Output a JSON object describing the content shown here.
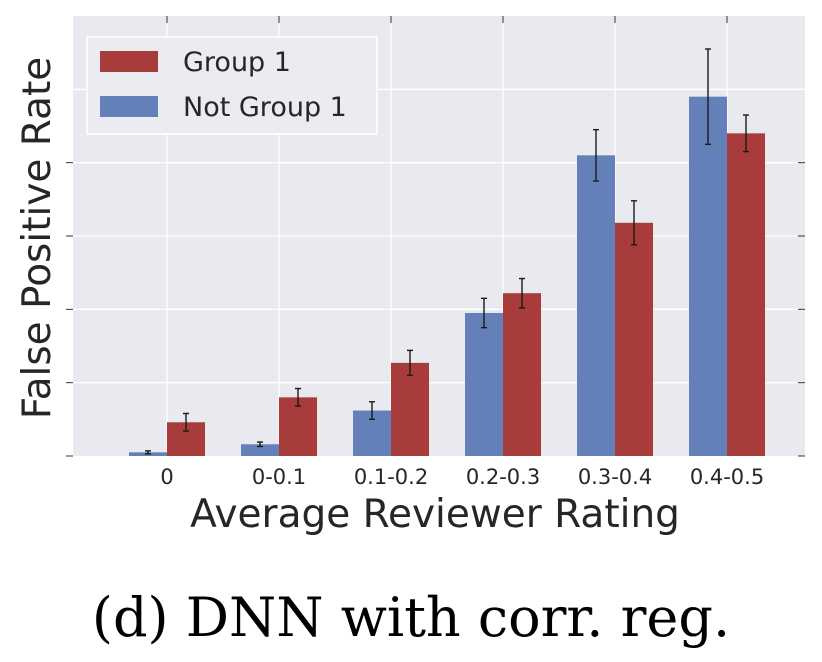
{
  "chart_data": {
    "type": "bar",
    "title": "",
    "xlabel": "Average Reviewer Rating",
    "ylabel": "False Positive Rate",
    "categories": [
      "0",
      "0-0.1",
      "0.1-0.2",
      "0.2-0.3",
      "0.3-0.4",
      "0.4-0.5"
    ],
    "ylim": [
      0,
      0.6
    ],
    "yticks_labeled": false,
    "grid": true,
    "legend_position": "top-left",
    "series": [
      {
        "name": "Not Group 1",
        "color": "#6381b8",
        "values": [
          0.005,
          0.016,
          0.062,
          0.195,
          0.41,
          0.49
        ],
        "errors": [
          0.002,
          0.003,
          0.012,
          0.02,
          0.035,
          0.065
        ]
      },
      {
        "name": "Group 1",
        "color": "#a83c3a",
        "values": [
          0.046,
          0.08,
          0.127,
          0.222,
          0.318,
          0.44
        ],
        "errors": [
          0.012,
          0.012,
          0.017,
          0.02,
          0.03,
          0.025
        ]
      }
    ],
    "legend_order": [
      "Group 1",
      "Not Group 1"
    ]
  },
  "caption": "(d) DNN with corr. reg.",
  "colors": {
    "plot_background": "#e9e9f0",
    "grid": "#ffffff",
    "text": "#262626"
  }
}
